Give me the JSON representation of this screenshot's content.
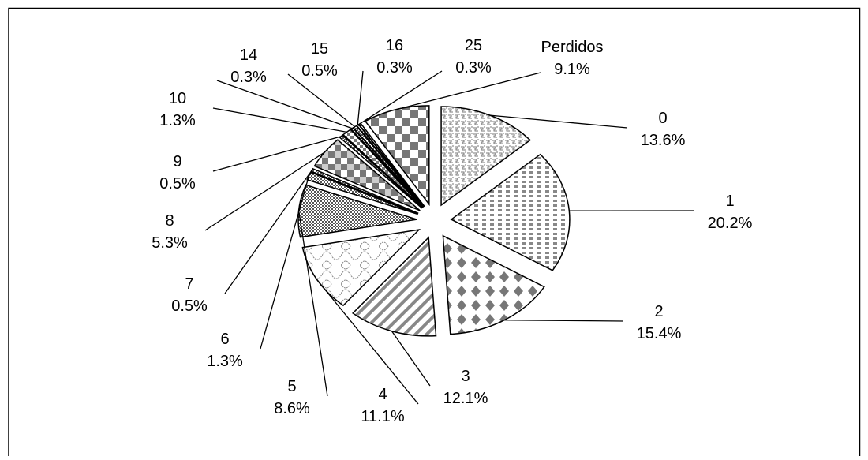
{
  "chart_data": {
    "type": "pie",
    "categories": [
      "0",
      "1",
      "2",
      "3",
      "4",
      "5",
      "6",
      "7",
      "8",
      "9",
      "10",
      "14",
      "15",
      "16",
      "25",
      "Perdidos"
    ],
    "values": [
      13.6,
      20.2,
      15.4,
      12.1,
      11.1,
      8.6,
      1.3,
      0.5,
      5.3,
      0.5,
      1.3,
      0.3,
      0.5,
      0.3,
      0.3,
      9.1
    ],
    "value_labels": [
      "13.6%",
      "20.2%",
      "15.4%",
      "12.1%",
      "11.1%",
      "8.6%",
      "1.3%",
      "0.5%",
      "5.3%",
      "0.5%",
      "1.3%",
      "0.3%",
      "0.5%",
      "0.3%",
      "0.3%",
      "9.1%"
    ]
  }
}
